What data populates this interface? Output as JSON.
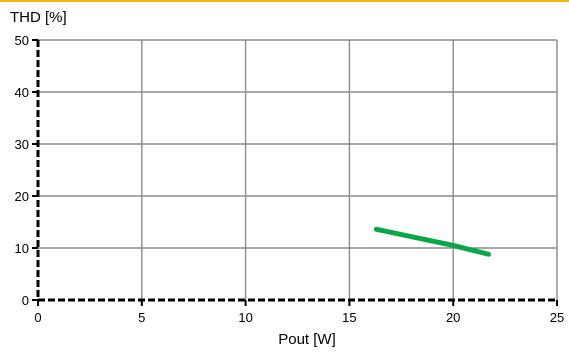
{
  "colors": {
    "top_rule": "#f5b800",
    "grid": "#8c8c8c",
    "axis": "#000000",
    "series": "#0aa64a"
  },
  "chart_data": {
    "type": "line",
    "title": "",
    "xlabel": "Pout [W]",
    "ylabel": "THD [%]",
    "xlim": [
      0,
      25
    ],
    "ylim": [
      0,
      50
    ],
    "x_ticks": [
      0,
      5,
      10,
      15,
      20,
      25
    ],
    "y_ticks": [
      0,
      10,
      20,
      30,
      40,
      50
    ],
    "grid": true,
    "legend": "none",
    "series": [
      {
        "x": [
          16.3,
          20.0,
          21.7
        ],
        "y": [
          13.6,
          10.5,
          8.8
        ]
      }
    ]
  }
}
